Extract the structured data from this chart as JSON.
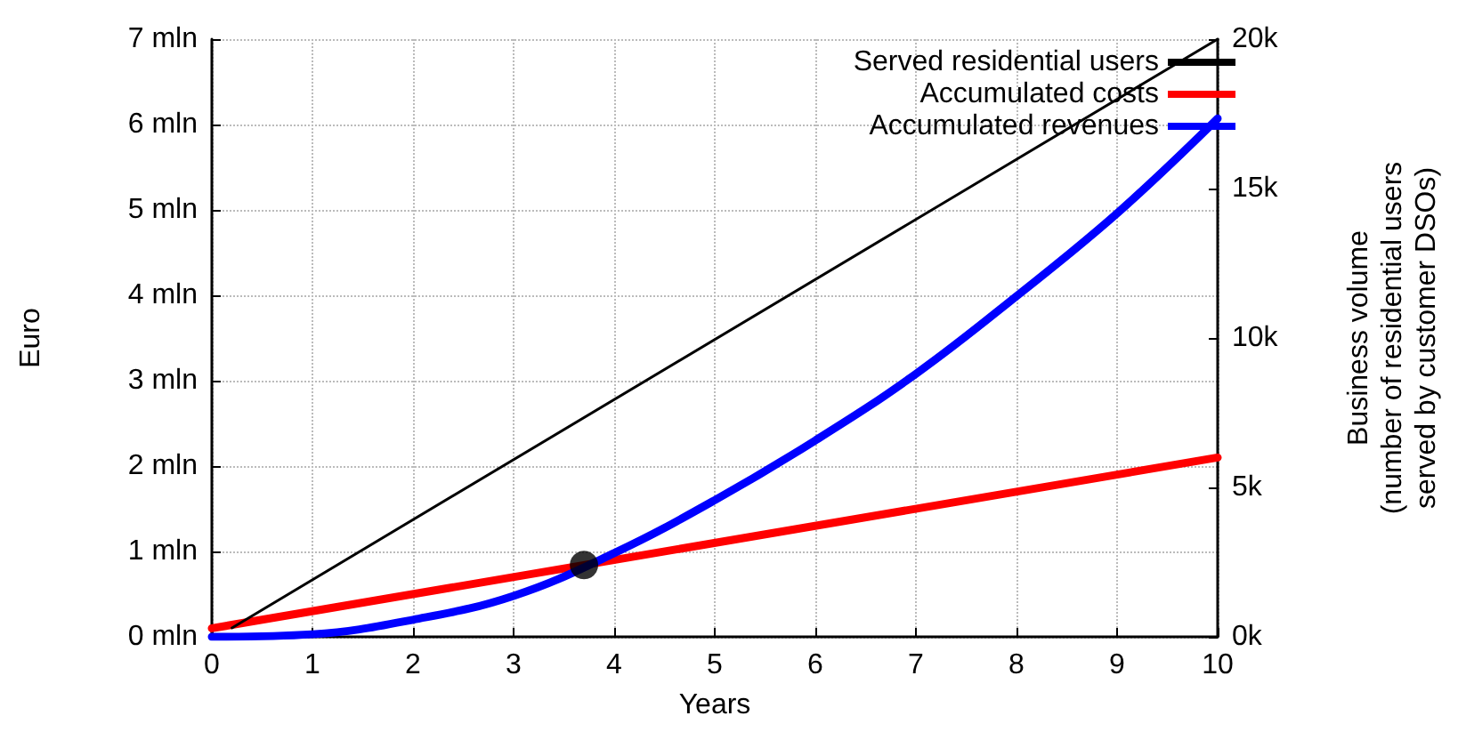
{
  "chart_data": {
    "type": "line",
    "xlabel": "Years",
    "ylabel": "Euro",
    "y2label": "Business volume\n(number of residential users\nserved by customer DSOs)",
    "xlim": [
      0,
      10
    ],
    "xticks": [
      0,
      1,
      2,
      3,
      4,
      5,
      6,
      7,
      8,
      9,
      10
    ],
    "ylim": [
      0,
      7
    ],
    "yticks": [
      {
        "value": 0,
        "label": "0 mln"
      },
      {
        "value": 1,
        "label": "1 mln"
      },
      {
        "value": 2,
        "label": "2 mln"
      },
      {
        "value": 3,
        "label": "3 mln"
      },
      {
        "value": 4,
        "label": "4 mln"
      },
      {
        "value": 5,
        "label": "5 mln"
      },
      {
        "value": 6,
        "label": "6 mln"
      },
      {
        "value": 7,
        "label": "7 mln"
      }
    ],
    "y2lim": [
      0,
      20
    ],
    "y2ticks": [
      {
        "value": 0,
        "label": "0k"
      },
      {
        "value": 5,
        "label": "5k"
      },
      {
        "value": 10,
        "label": "10k"
      },
      {
        "value": 15,
        "label": "15k"
      },
      {
        "value": 20,
        "label": "20k"
      }
    ],
    "grid": true,
    "legend": "top right",
    "marker": "none",
    "line_style": "solid",
    "series": [
      {
        "name": "Served residential users",
        "color": "#000000",
        "axis": "y2",
        "x": [
          0.2,
          10
        ],
        "values": [
          0.3,
          20
        ]
      },
      {
        "name": "Accumulated costs",
        "color": "#ff0000",
        "x": [
          0,
          10
        ],
        "values": [
          0.1,
          2.1
        ]
      },
      {
        "name": "Accumulated revenues",
        "color": "#0000ff",
        "x": [
          0,
          1,
          2,
          3,
          4,
          5,
          6,
          7,
          8,
          9,
          10
        ],
        "values": [
          0,
          0.03,
          0.2,
          0.48,
          0.98,
          1.6,
          2.3,
          3.08,
          3.99,
          4.96,
          6.07
        ]
      },
      {
        "type": "scatter",
        "color": "#000000",
        "marker": "circle",
        "x": [
          3.7
        ],
        "values": [
          0.84
        ]
      }
    ]
  }
}
